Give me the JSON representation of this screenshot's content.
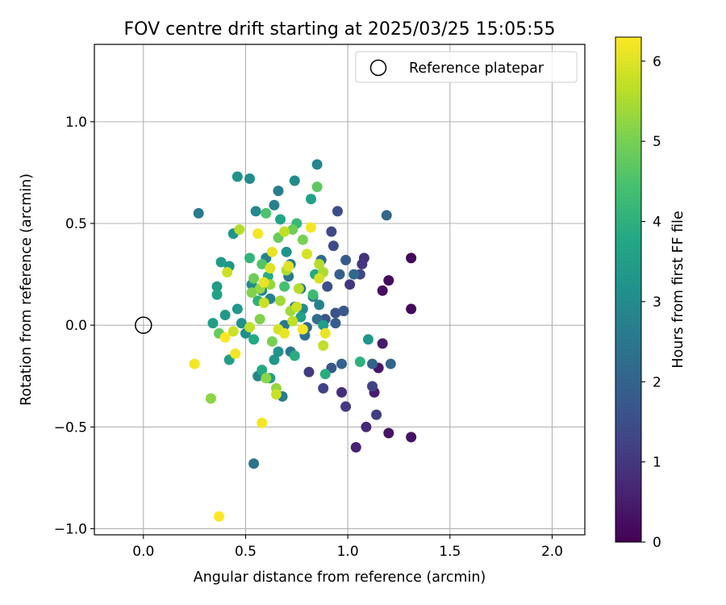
{
  "chart_data": {
    "type": "scatter",
    "title": "FOV centre drift starting at 2025/03/25 15:05:55",
    "xlabel": "Angular distance from reference (arcmin)",
    "ylabel": "Rotation from reference (arcmin)",
    "xlim": [
      -0.24,
      2.16
    ],
    "ylim": [
      -1.03,
      1.38
    ],
    "xticks": [
      0.0,
      0.5,
      1.0,
      1.5,
      2.0
    ],
    "xtick_labels": [
      "0.0",
      "0.5",
      "1.0",
      "1.5",
      "2.0"
    ],
    "yticks": [
      -1.0,
      -0.5,
      0.0,
      0.5,
      1.0
    ],
    "ytick_labels": [
      "−1.0",
      "−0.5",
      "0.0",
      "0.5",
      "1.0"
    ],
    "grid": true,
    "legend": {
      "position": "top-right",
      "entries": [
        {
          "label": "Reference platepar",
          "marker": "open-circle",
          "color": "#000000"
        }
      ]
    },
    "reference_point": {
      "x": 0.0,
      "y": 0.0
    },
    "colorbar": {
      "label": "Hours from first FF file",
      "colormap": "viridis",
      "range": [
        0,
        6.3
      ],
      "ticks": [
        0,
        1,
        2,
        3,
        4,
        5,
        6
      ],
      "tick_labels": [
        "0",
        "1",
        "2",
        "3",
        "4",
        "5",
        "6"
      ]
    },
    "points": [
      [
        1.31,
        0.33,
        0.1
      ],
      [
        1.31,
        0.08,
        0.15
      ],
      [
        1.2,
        0.22,
        0.2
      ],
      [
        1.17,
        0.17,
        0.25
      ],
      [
        1.31,
        -0.55,
        0.3
      ],
      [
        1.2,
        -0.53,
        0.35
      ],
      [
        1.15,
        -0.21,
        0.4
      ],
      [
        1.17,
        -0.09,
        0.45
      ],
      [
        1.13,
        -0.33,
        0.5
      ],
      [
        1.04,
        -0.6,
        0.6
      ],
      [
        1.09,
        -0.5,
        0.7
      ],
      [
        0.97,
        -0.33,
        0.8
      ],
      [
        1.08,
        0.33,
        0.9
      ],
      [
        1.07,
        0.3,
        1.0
      ],
      [
        1.01,
        0.2,
        1.0
      ],
      [
        0.99,
        -0.4,
        1.05
      ],
      [
        0.81,
        -0.23,
        1.1
      ],
      [
        1.14,
        -0.44,
        1.15
      ],
      [
        1.12,
        -0.3,
        1.2
      ],
      [
        0.88,
        -0.31,
        1.25
      ],
      [
        1.06,
        0.25,
        1.3
      ],
      [
        0.98,
        0.07,
        1.35
      ],
      [
        0.92,
        0.46,
        1.4
      ],
      [
        0.93,
        0.39,
        1.45
      ],
      [
        0.95,
        0.56,
        1.5
      ],
      [
        0.9,
        0.19,
        1.55
      ],
      [
        0.94,
        0.06,
        1.6
      ],
      [
        0.89,
        0.03,
        1.65
      ],
      [
        0.92,
        -0.21,
        1.7
      ],
      [
        0.98,
        0.07,
        1.75
      ],
      [
        0.99,
        0.32,
        1.8
      ],
      [
        0.94,
        0.01,
        1.85
      ],
      [
        0.96,
        0.25,
        1.9
      ],
      [
        0.97,
        -0.19,
        1.95
      ],
      [
        1.12,
        -0.19,
        2.0
      ],
      [
        1.21,
        -0.19,
        2.05
      ],
      [
        1.19,
        0.54,
        2.1
      ],
      [
        1.03,
        0.25,
        2.15
      ],
      [
        0.87,
        0.32,
        2.2
      ],
      [
        0.85,
        0.03,
        2.25
      ],
      [
        0.79,
        -0.05,
        2.3
      ],
      [
        0.77,
        0.18,
        2.35
      ],
      [
        0.74,
        0.09,
        2.4
      ],
      [
        0.72,
        -0.13,
        2.45
      ],
      [
        0.71,
        0.24,
        2.5
      ],
      [
        0.69,
        0.0,
        2.55
      ],
      [
        0.68,
        -0.35,
        2.6
      ],
      [
        0.66,
        0.66,
        2.65
      ],
      [
        0.64,
        0.59,
        2.7
      ],
      [
        0.62,
        0.13,
        2.75
      ],
      [
        0.6,
        0.33,
        2.8
      ],
      [
        0.58,
        0.17,
        2.85
      ],
      [
        0.56,
        -0.25,
        2.9
      ],
      [
        0.55,
        0.56,
        2.95
      ],
      [
        0.53,
        0.2,
        3.0
      ],
      [
        0.52,
        0.72,
        3.05
      ],
      [
        0.5,
        -0.04,
        3.1
      ],
      [
        0.48,
        0.01,
        3.15
      ],
      [
        0.46,
        0.73,
        3.2
      ],
      [
        0.44,
        0.45,
        3.25
      ],
      [
        0.42,
        0.29,
        3.3
      ],
      [
        0.4,
        0.05,
        3.35
      ],
      [
        0.38,
        0.31,
        3.4
      ],
      [
        0.36,
        0.19,
        3.45
      ],
      [
        0.34,
        0.01,
        3.5
      ],
      [
        0.54,
        -0.68,
        2.4
      ],
      [
        0.27,
        0.55,
        2.6
      ],
      [
        0.85,
        0.79,
        2.9
      ],
      [
        0.74,
        0.71,
        3.0
      ],
      [
        0.82,
        0.62,
        3.6
      ],
      [
        0.78,
        0.08,
        3.0
      ],
      [
        0.8,
        -0.01,
        2.2
      ],
      [
        0.83,
        0.14,
        2.5
      ],
      [
        0.86,
        0.1,
        2.8
      ],
      [
        0.7,
        0.36,
        3.2
      ],
      [
        0.72,
        0.3,
        2.6
      ],
      [
        0.64,
        -0.17,
        3.3
      ],
      [
        0.67,
        0.52,
        3.7
      ],
      [
        0.58,
        -0.22,
        3.8
      ],
      [
        0.61,
        0.24,
        3.9
      ],
      [
        0.56,
        0.12,
        4.0
      ],
      [
        0.52,
        0.33,
        4.1
      ],
      [
        0.36,
        0.15,
        3.6
      ],
      [
        0.42,
        -0.17,
        3.5
      ],
      [
        0.46,
        0.08,
        3.3
      ],
      [
        0.54,
        -0.07,
        3.8
      ],
      [
        0.62,
        -0.26,
        3.5
      ],
      [
        0.66,
        -0.13,
        3.2
      ],
      [
        0.74,
        -0.15,
        3.9
      ],
      [
        0.77,
        0.04,
        3.6
      ],
      [
        0.89,
        -0.24,
        3.9
      ],
      [
        0.84,
        0.25,
        3.8
      ],
      [
        0.88,
        0.0,
        3.5
      ],
      [
        1.06,
        -0.18,
        4.0
      ],
      [
        1.1,
        -0.07,
        3.3
      ],
      [
        0.75,
        0.5,
        4.2
      ],
      [
        0.6,
        0.55,
        4.5
      ],
      [
        0.83,
        0.15,
        4.3
      ],
      [
        0.69,
        0.19,
        4.4
      ],
      [
        0.58,
        0.3,
        4.6
      ],
      [
        0.66,
        0.43,
        4.8
      ],
      [
        0.73,
        0.47,
        4.9
      ],
      [
        0.85,
        0.68,
        4.7
      ],
      [
        0.37,
        -0.04,
        4.8
      ],
      [
        0.54,
        0.23,
        4.9
      ],
      [
        0.63,
        -0.08,
        5.0
      ],
      [
        0.57,
        0.03,
        5.1
      ],
      [
        0.6,
        -0.26,
        5.2
      ],
      [
        0.65,
        -0.31,
        5.3
      ],
      [
        0.72,
        0.07,
        5.4
      ],
      [
        0.78,
        0.42,
        5.0
      ],
      [
        0.7,
        0.27,
        5.5
      ],
      [
        0.86,
        0.3,
        5.6
      ],
      [
        0.52,
        -0.01,
        5.7
      ],
      [
        0.44,
        -0.03,
        5.8
      ],
      [
        0.62,
        0.2,
        5.3
      ],
      [
        0.67,
        0.12,
        5.4
      ],
      [
        0.33,
        -0.36,
        5.2
      ],
      [
        0.69,
        0.46,
        5.7
      ],
      [
        0.59,
        0.11,
        5.8
      ],
      [
        0.76,
        0.18,
        5.6
      ],
      [
        0.8,
        0.35,
        5.9
      ],
      [
        0.88,
        0.26,
        5.5
      ],
      [
        0.73,
        0.02,
        5.7
      ],
      [
        0.66,
        -0.02,
        5.9
      ],
      [
        0.57,
        0.18,
        5.3
      ],
      [
        0.53,
        0.16,
        5.1
      ],
      [
        0.47,
        0.47,
        5.6
      ],
      [
        0.41,
        0.26,
        5.8
      ],
      [
        0.62,
        0.28,
        6.0
      ],
      [
        0.69,
        -0.04,
        6.1
      ],
      [
        0.78,
        -0.02,
        6.2
      ],
      [
        0.82,
        0.48,
        6.2
      ],
      [
        0.59,
        0.21,
        6.1
      ],
      [
        0.56,
        0.45,
        6.2
      ],
      [
        0.63,
        0.36,
        6.1
      ],
      [
        0.71,
        0.29,
        6.0
      ],
      [
        0.86,
        0.23,
        5.9
      ],
      [
        0.75,
        0.09,
        5.8
      ],
      [
        0.88,
        -0.1,
        5.7
      ],
      [
        0.45,
        -0.14,
        6.2
      ],
      [
        0.25,
        -0.19,
        6.2
      ],
      [
        0.4,
        -0.06,
        6.3
      ],
      [
        0.58,
        -0.48,
        6.2
      ],
      [
        0.37,
        -0.94,
        6.3
      ],
      [
        0.89,
        -0.04,
        6.1
      ],
      [
        0.65,
        -0.34,
        5.8
      ]
    ]
  }
}
